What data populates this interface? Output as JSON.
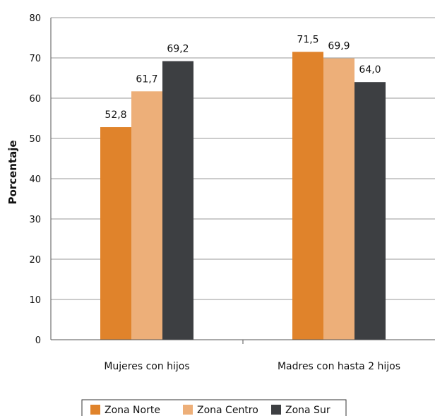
{
  "chart_data": {
    "type": "bar",
    "title": "",
    "xlabel": "",
    "ylabel": "Porcentaje",
    "ylim": [
      0,
      80
    ],
    "yticks": [
      0,
      10,
      20,
      30,
      40,
      50,
      60,
      70,
      80
    ],
    "grid": true,
    "legend_position": "bottom",
    "categories": [
      "Mujeres con hijos",
      "Madres con hasta 2 hijos"
    ],
    "series": [
      {
        "name": "Zona Norte",
        "color": "#E0832B",
        "values": [
          52.8,
          71.5
        ],
        "labels": [
          "52,8",
          "71,5"
        ]
      },
      {
        "name": "Zona Centro",
        "color": "#EDAF79",
        "values": [
          61.7,
          69.9
        ],
        "labels": [
          "61,7",
          "69,9"
        ]
      },
      {
        "name": "Zona Sur",
        "color": "#3D3F42",
        "values": [
          69.2,
          64.0
        ],
        "labels": [
          "69,2",
          "64,0"
        ]
      }
    ]
  }
}
